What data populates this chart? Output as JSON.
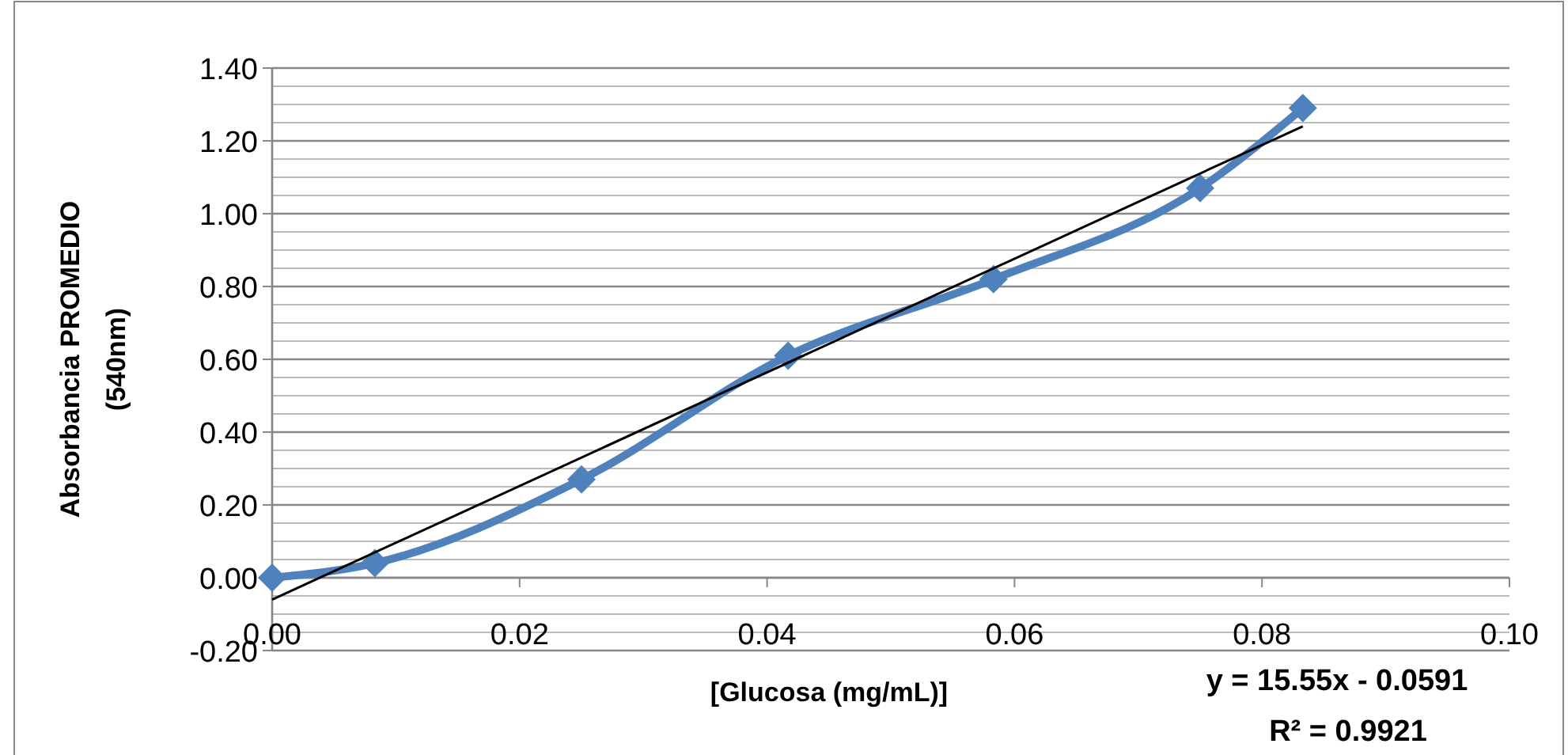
{
  "chart_data": {
    "type": "line",
    "xlabel": "[Glucosa (mg/mL)]",
    "ylabel": "Absorbancia PROMEDIO (540nm)",
    "xlim": [
      0,
      0.1
    ],
    "xticks": [
      {
        "value": 0,
        "label": "0.00"
      },
      {
        "value": 0.02,
        "label": "0.02"
      },
      {
        "value": 0.04,
        "label": "0.04"
      },
      {
        "value": 0.06,
        "label": "0.06"
      },
      {
        "value": 0.08,
        "label": "0.08"
      },
      {
        "value": 0.1,
        "label": "0.10"
      }
    ],
    "ylim": [
      -0.2,
      1.4
    ],
    "yticks": [
      {
        "value": -0.2,
        "label": "-0.20"
      },
      {
        "value": 0,
        "label": "0.00"
      },
      {
        "value": 0.2,
        "label": "0.20"
      },
      {
        "value": 0.4,
        "label": "0.40"
      },
      {
        "value": 0.6,
        "label": "0.60"
      },
      {
        "value": 0.8,
        "label": "0.80"
      },
      {
        "value": 1,
        "label": "1.00"
      },
      {
        "value": 1.2,
        "label": "1.20"
      },
      {
        "value": 1.4,
        "label": "1.40"
      }
    ],
    "grid": "y",
    "marker": "diamond",
    "series": [
      {
        "color": "#4f81bd",
        "x": [
          0,
          0.0083,
          0.025,
          0.0417,
          0.0583,
          0.075,
          0.0833
        ],
        "values": [
          0,
          0.04,
          0.27,
          0.61,
          0.82,
          1.07,
          1.29
        ]
      },
      {
        "type": "line",
        "color": "#000000",
        "marker": "none",
        "x": [
          0,
          0.0833
        ],
        "values": [
          -0.06,
          1.24
        ]
      }
    ],
    "annotations": [
      "y = 15.55x - 0.0591",
      "R² = 0.9921"
    ]
  }
}
